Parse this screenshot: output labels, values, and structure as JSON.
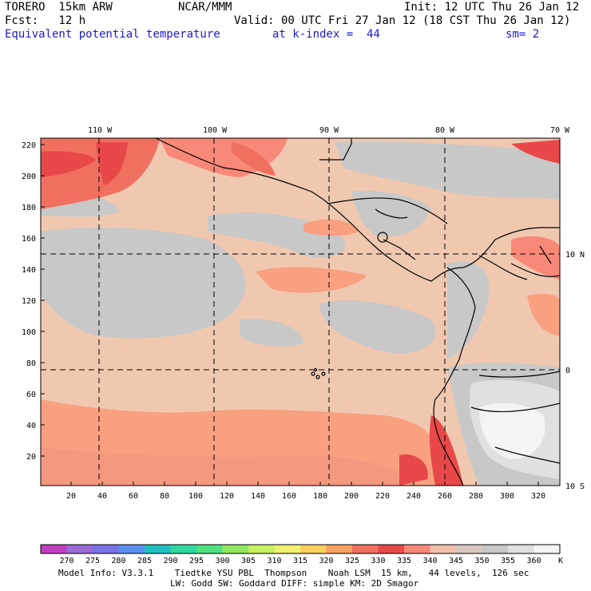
{
  "header": {
    "model": "TORERO  15km ARW",
    "org": "NCAR/MMM",
    "init": "Init: 12 UTC Thu 26 Jan 12",
    "fcst": "Fcst:   12 h",
    "valid": "Valid: 00 UTC Fri 27 Jan 12 (18 CST Thu 26 Jan 12)",
    "field": "Equivalent potential temperature",
    "level": "at k-index =  44",
    "smoothing": "sm= 2"
  },
  "map": {
    "top_lon_labels": [
      "110 W",
      "100 W",
      "90 W",
      "80 W",
      "70 W"
    ],
    "right_lat_labels": [
      "10 N",
      "0",
      "10 S"
    ],
    "y_ticks": [
      20,
      40,
      60,
      80,
      100,
      120,
      140,
      160,
      180,
      200,
      220
    ],
    "x_ticks": [
      20,
      40,
      60,
      80,
      100,
      120,
      140,
      160,
      180,
      200,
      220,
      240,
      260,
      280,
      300,
      320
    ]
  },
  "colorbar": {
    "labels": [
      "270",
      "275",
      "280",
      "285",
      "290",
      "295",
      "300",
      "305",
      "310",
      "315",
      "320",
      "325",
      "330",
      "335",
      "340",
      "345",
      "350",
      "355",
      "360"
    ],
    "unit": "K",
    "colors": [
      "#c040c0",
      "#9a6ad8",
      "#7a72e8",
      "#5a8ef0",
      "#20c0c0",
      "#30d8a0",
      "#50e080",
      "#90e860",
      "#c8f060",
      "#f0f070",
      "#f8d060",
      "#f8a060",
      "#f07060",
      "#e84848",
      "#f88878",
      "#f0c0a8",
      "#d8c8c0",
      "#c8c8c8",
      "#e0e0e0",
      "#f4f4f4"
    ]
  },
  "footer": {
    "line1": "Model Info: V3.3.1    Tiedtke YSU PBL  Thompson    Noah LSM  15 km,   44 levels,  126 sec",
    "line2": "LW: Godd SW: Goddard DIFF: simple KM: 2D Smagor"
  }
}
